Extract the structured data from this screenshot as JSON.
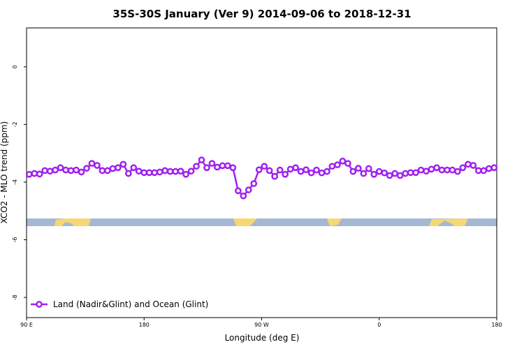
{
  "chart_data": {
    "type": "line",
    "title": "35S-30S January (Ver 9)   2014-09-06 to 2018-12-31",
    "xlabel": "Longitude (deg E)",
    "ylabel": "XCO2 - MLO trend (ppm)",
    "x": [
      92,
      96,
      100,
      104,
      108,
      112,
      116,
      120,
      124,
      128,
      132,
      136,
      140,
      144,
      148,
      152,
      156,
      160,
      164,
      168,
      172,
      176,
      180,
      184,
      188,
      192,
      196,
      200,
      204,
      208,
      212,
      216,
      220,
      224,
      228,
      232,
      236,
      240,
      244,
      248,
      252,
      256,
      260,
      264,
      268,
      272,
      276,
      280,
      284,
      288,
      292,
      296,
      300,
      304,
      308,
      312,
      316,
      320,
      324,
      328,
      332,
      336,
      340,
      344,
      348,
      352,
      356,
      360,
      364,
      368,
      372,
      376,
      380,
      384,
      388,
      392,
      396,
      400,
      404,
      408,
      412,
      416,
      420,
      424,
      428,
      432,
      436,
      440,
      444,
      448
    ],
    "series": [
      {
        "name": "Land (Nadir&Glint) and Ocean (Glint)",
        "color": "#a020f0",
        "values": [
          -3.73,
          -3.7,
          -3.72,
          -3.6,
          -3.62,
          -3.58,
          -3.5,
          -3.58,
          -3.6,
          -3.58,
          -3.65,
          -3.52,
          -3.35,
          -3.42,
          -3.6,
          -3.6,
          -3.53,
          -3.5,
          -3.38,
          -3.7,
          -3.5,
          -3.62,
          -3.67,
          -3.67,
          -3.67,
          -3.65,
          -3.6,
          -3.63,
          -3.63,
          -3.62,
          -3.73,
          -3.62,
          -3.45,
          -3.23,
          -3.5,
          -3.35,
          -3.48,
          -3.43,
          -3.43,
          -3.5,
          -4.3,
          -4.48,
          -4.27,
          -4.05,
          -3.57,
          -3.45,
          -3.6,
          -3.8,
          -3.58,
          -3.73,
          -3.55,
          -3.5,
          -3.63,
          -3.57,
          -3.68,
          -3.58,
          -3.68,
          -3.63,
          -3.45,
          -3.4,
          -3.27,
          -3.35,
          -3.63,
          -3.52,
          -3.7,
          -3.53,
          -3.73,
          -3.63,
          -3.68,
          -3.77,
          -3.7,
          -3.77,
          -3.7,
          -3.67,
          -3.67,
          -3.58,
          -3.62,
          -3.55,
          -3.5,
          -3.58,
          -3.58,
          -3.58,
          -3.63,
          -3.5,
          -3.38,
          -3.42,
          -3.6,
          -3.6,
          -3.53,
          -3.5
        ]
      }
    ],
    "xlim": [
      90,
      450
    ],
    "xticks": [
      {
        "value": 90,
        "label": "90 E"
      },
      180,
      {
        "value": 270,
        "label": "90 W"
      },
      {
        "value": 360,
        "label": "0"
      },
      {
        "value": 450,
        "label": "180"
      }
    ],
    "ylim": [
      -8.7,
      1.35
    ],
    "yticks": [
      0,
      -2,
      -4,
      -6,
      -8
    ],
    "legend": "bottom-left"
  }
}
